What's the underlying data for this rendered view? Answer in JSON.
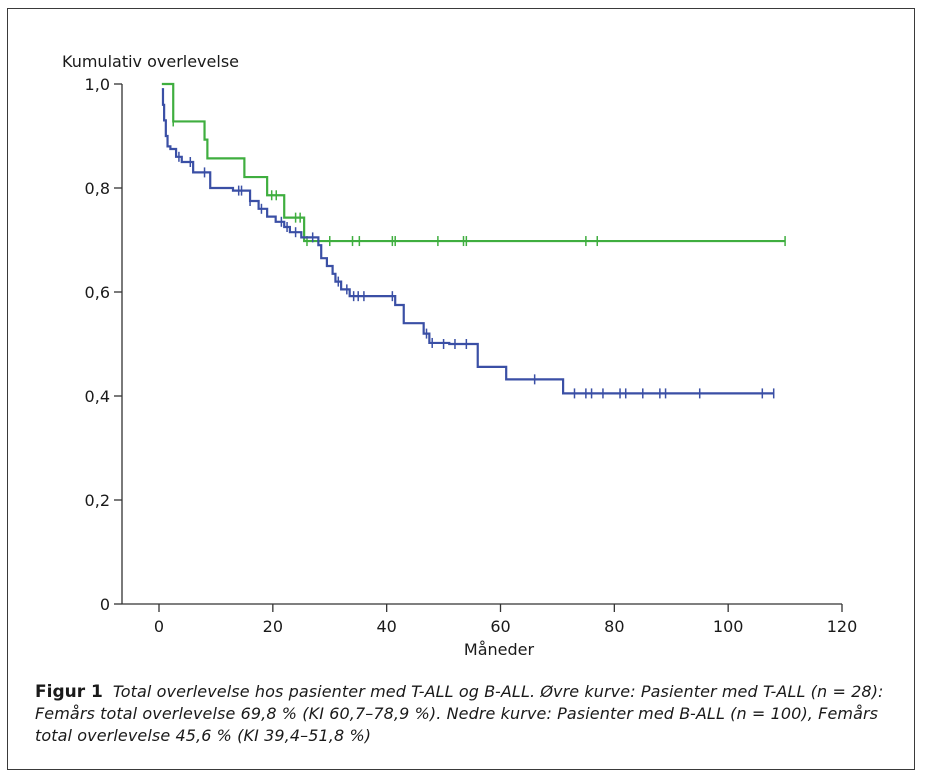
{
  "chart_data": {
    "type": "line",
    "step": true,
    "ylabel": "Kumulativ overlevelse",
    "xlabel": "Måneder",
    "xlim": [
      0,
      120
    ],
    "ylim": [
      0,
      1.0
    ],
    "xticks": [
      0,
      20,
      40,
      60,
      80,
      100,
      120
    ],
    "xtick_labels": [
      "0",
      "20",
      "40",
      "60",
      "80",
      "100",
      "120"
    ],
    "yticks": [
      0,
      0.2,
      0.4,
      0.6,
      0.8,
      1.0
    ],
    "ytick_labels": [
      "0",
      "0,2",
      "0,4",
      "0,6",
      "0,8",
      "1,0"
    ],
    "grid": false,
    "series": [
      {
        "color": "#3fae3f",
        "x": [
          0.5,
          2,
          2.5,
          8,
          8.5,
          15,
          19,
          22,
          25.5,
          110
        ],
        "y": [
          1.0,
          1.0,
          0.928,
          0.893,
          0.857,
          0.821,
          0.786,
          0.743,
          0.698,
          0.698
        ],
        "censor_x": [
          2.5,
          19.8,
          20.6,
          24,
          24.8,
          26,
          30,
          34,
          35.2,
          41,
          41.5,
          49,
          53.5,
          54,
          75,
          77,
          110
        ],
        "censor_y": [
          0.928,
          0.786,
          0.786,
          0.743,
          0.743,
          0.698,
          0.698,
          0.698,
          0.698,
          0.698,
          0.698,
          0.698,
          0.698,
          0.698,
          0.698,
          0.698,
          0.698
        ]
      },
      {
        "color": "#3a4fa5",
        "x": [
          0.5,
          0.7,
          0.9,
          1.2,
          1.5,
          2,
          3,
          4,
          6,
          9,
          13,
          16,
          17.5,
          19,
          20.5,
          22,
          23,
          25,
          28,
          28.5,
          29.5,
          30.5,
          31,
          32,
          33.5,
          41.5,
          43,
          46.5,
          47.5,
          51,
          56,
          61,
          71,
          108
        ],
        "y": [
          0.99,
          0.96,
          0.93,
          0.9,
          0.88,
          0.875,
          0.86,
          0.85,
          0.83,
          0.8,
          0.795,
          0.775,
          0.76,
          0.745,
          0.735,
          0.725,
          0.715,
          0.705,
          0.69,
          0.665,
          0.65,
          0.635,
          0.62,
          0.605,
          0.592,
          0.575,
          0.54,
          0.52,
          0.502,
          0.5,
          0.456,
          0.432,
          0.405,
          0.405
        ],
        "censor_x": [
          3.5,
          5.5,
          8,
          14,
          14.5,
          16,
          18,
          21.5,
          22.5,
          24,
          27,
          31.5,
          33,
          34.2,
          35,
          36,
          41,
          47,
          48,
          50,
          52,
          54,
          66,
          73,
          75,
          76,
          78,
          81,
          82,
          85,
          88,
          89,
          95,
          106,
          108
        ],
        "censor_y": [
          0.86,
          0.85,
          0.83,
          0.795,
          0.795,
          0.775,
          0.76,
          0.735,
          0.725,
          0.715,
          0.705,
          0.62,
          0.605,
          0.592,
          0.592,
          0.592,
          0.592,
          0.52,
          0.502,
          0.5,
          0.5,
          0.5,
          0.432,
          0.405,
          0.405,
          0.405,
          0.405,
          0.405,
          0.405,
          0.405,
          0.405,
          0.405,
          0.405,
          0.405,
          0.405
        ]
      }
    ]
  },
  "caption": {
    "label": "Figur 1",
    "text": "Total overlevelse hos pasienter med T-ALL og B-ALL. Øvre kurve: Pasienter med T-ALL (n = 28): Femårs total overlevelse 69,8 % (KI 60,7–78,9 %). Nedre kurve: Pasienter med B-ALL (n = 100), Femårs total overlevelse 45,6 % (KI 39,4–51,8 %)"
  }
}
